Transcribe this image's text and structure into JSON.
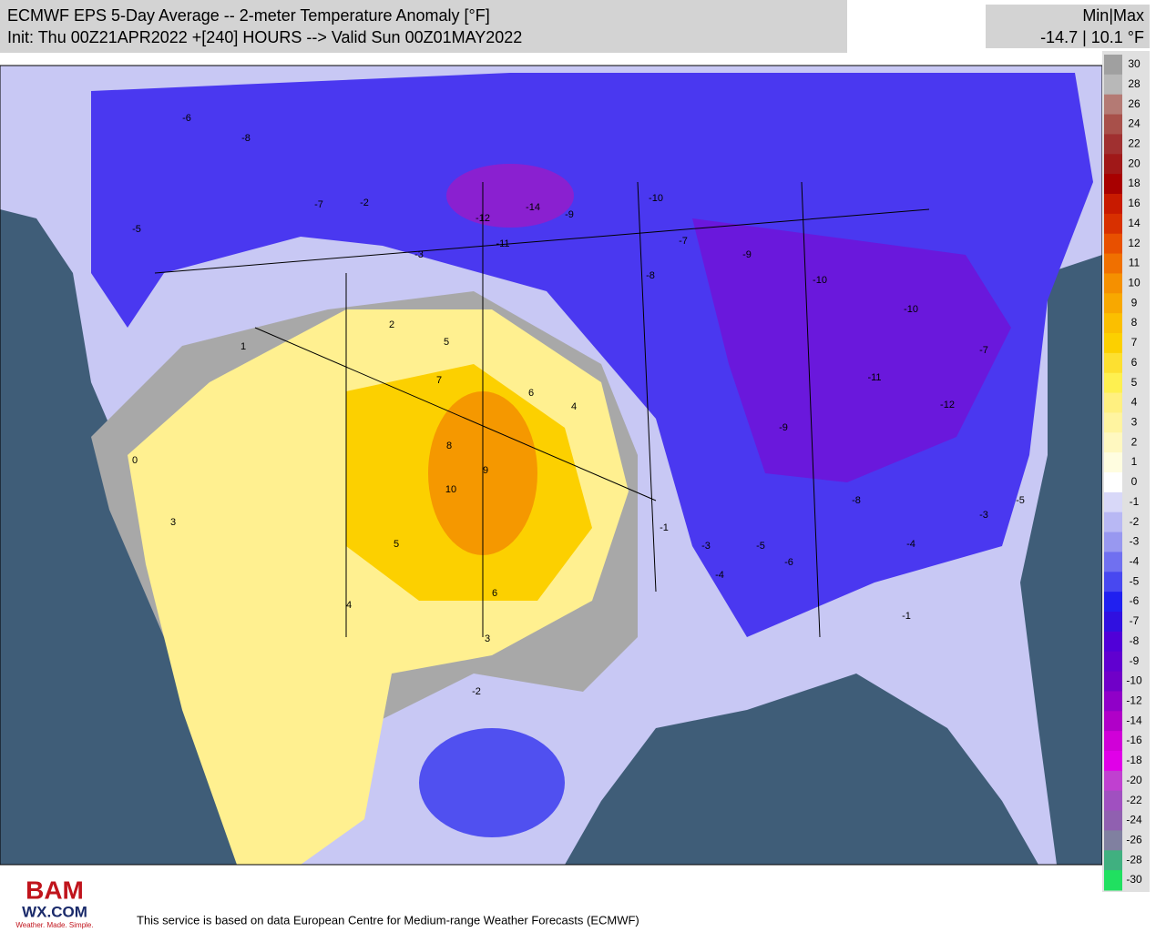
{
  "header": {
    "title": "ECMWF EPS 5-Day Average -- 2-meter Temperature Anomaly [°F]",
    "subtitle": "Init: Thu 00Z21APR2022 +[240] HOURS --> Valid Sun 00Z01MAY2022"
  },
  "minmax": {
    "label": "Min|Max",
    "value": "-14.7 | 10.1 °F"
  },
  "colorbar": {
    "ticks": [
      30,
      28,
      26,
      24,
      22,
      20,
      18,
      16,
      14,
      12,
      11,
      10,
      9,
      8,
      7,
      6,
      5,
      4,
      3,
      2,
      1,
      0,
      -1,
      -2,
      -3,
      -4,
      -5,
      -6,
      -7,
      -8,
      -9,
      -10,
      -12,
      -14,
      -16,
      -18,
      -20,
      -22,
      -24,
      -26,
      -28,
      -30
    ],
    "colors": [
      "#a0a0a0",
      "#b8b8b8",
      "#b47a74",
      "#a8504a",
      "#a03030",
      "#a01818",
      "#a80000",
      "#c81a00",
      "#d83000",
      "#e85000",
      "#f07000",
      "#f59000",
      "#f8a800",
      "#fbbf00",
      "#fcd000",
      "#fde030",
      "#fef050",
      "#fff080",
      "#fff4a0",
      "#fff8c0",
      "#fffde0",
      "#ffffff",
      "#d8d8f8",
      "#b8b8f4",
      "#9898f0",
      "#7070f0",
      "#4848f0",
      "#2020f0",
      "#3010e0",
      "#5000d8",
      "#6000d0",
      "#7000c8",
      "#9000c8",
      "#b000c8",
      "#d000d8",
      "#e000e8",
      "#c040d0",
      "#a050c0",
      "#9060b0",
      "#8080a0",
      "#40b080",
      "#20e060"
    ]
  },
  "map": {
    "labels": [
      "-6",
      "-8",
      "-5",
      "-7",
      "-2",
      "-3",
      "-12",
      "-14",
      "-11",
      "-9",
      "-10",
      "-7",
      "-8",
      "-9",
      "-10",
      "-11",
      "-12",
      "-10",
      "-7",
      "-5",
      "2",
      "5",
      "7",
      "8",
      "10",
      "9",
      "6",
      "4",
      "3",
      "1",
      "0",
      "-1",
      "-2",
      "-3",
      "-4",
      "-5",
      "-6",
      "-4",
      "-3",
      "-1",
      "6",
      "5",
      "4",
      "3",
      "-9",
      "-8"
    ]
  },
  "logo": {
    "line1": "BAM",
    "line2": "WX.COM",
    "tagline": "Weather. Made. Simple."
  },
  "footer": {
    "text": "This service is based on data European Centre for Medium-range Weather Forecasts (ECMWF)"
  }
}
